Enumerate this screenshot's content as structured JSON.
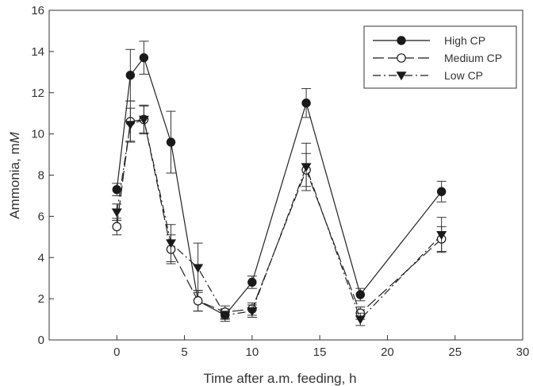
{
  "chart_data": {
    "type": "line",
    "xlabel": "Time after a.m. feeding, h",
    "ylabel_main": "Ammonia, m",
    "ylabel_italic": "M",
    "xlim": [
      -5,
      30
    ],
    "ylim": [
      0,
      16
    ],
    "xticks": [
      0,
      5,
      10,
      15,
      20,
      25,
      30
    ],
    "xtick_labels": [
      "0",
      "5",
      "10",
      "15",
      "20",
      "25",
      "30"
    ],
    "yticks": [
      0,
      2,
      4,
      6,
      8,
      10,
      12,
      14,
      16
    ],
    "ytick_labels": [
      "0",
      "2",
      "4",
      "6",
      "8",
      "10",
      "12",
      "14",
      "16"
    ],
    "legend_position": "top-right",
    "grid": false,
    "series": [
      {
        "name": "High CP",
        "marker": "filled-circle",
        "line_style": "solid",
        "color": "#222222",
        "x": [
          0,
          1,
          2,
          4,
          6,
          8,
          10,
          14,
          18,
          24
        ],
        "y": [
          7.3,
          12.85,
          13.7,
          9.6,
          1.9,
          1.2,
          2.8,
          11.5,
          2.2,
          7.2
        ],
        "error": [
          0.3,
          1.25,
          0.8,
          1.5,
          0.5,
          0.3,
          0.3,
          0.7,
          0.3,
          0.5
        ]
      },
      {
        "name": "Medium CP",
        "marker": "open-circle",
        "line_style": "dashed",
        "color": "#222222",
        "x": [
          0,
          1,
          2,
          4,
          6,
          8,
          10,
          14,
          18,
          24
        ],
        "y": [
          5.5,
          10.6,
          10.7,
          4.4,
          1.9,
          1.35,
          1.5,
          8.25,
          1.3,
          4.9
        ],
        "error": [
          0.4,
          1.0,
          0.7,
          0.7,
          0.5,
          0.3,
          0.3,
          0.8,
          0.3,
          0.6
        ]
      },
      {
        "name": "Low CP",
        "marker": "filled-triangle-down",
        "line_style": "dash-dot",
        "color": "#222222",
        "x": [
          0,
          1,
          2,
          4,
          6,
          8,
          10,
          14,
          18,
          24
        ],
        "y": [
          6.2,
          10.45,
          10.7,
          4.7,
          3.5,
          1.2,
          1.4,
          8.4,
          1.0,
          5.1
        ],
        "error": [
          0.4,
          0.8,
          0.65,
          0.9,
          1.2,
          0.2,
          0.3,
          1.15,
          0.3,
          0.85
        ]
      }
    ]
  }
}
